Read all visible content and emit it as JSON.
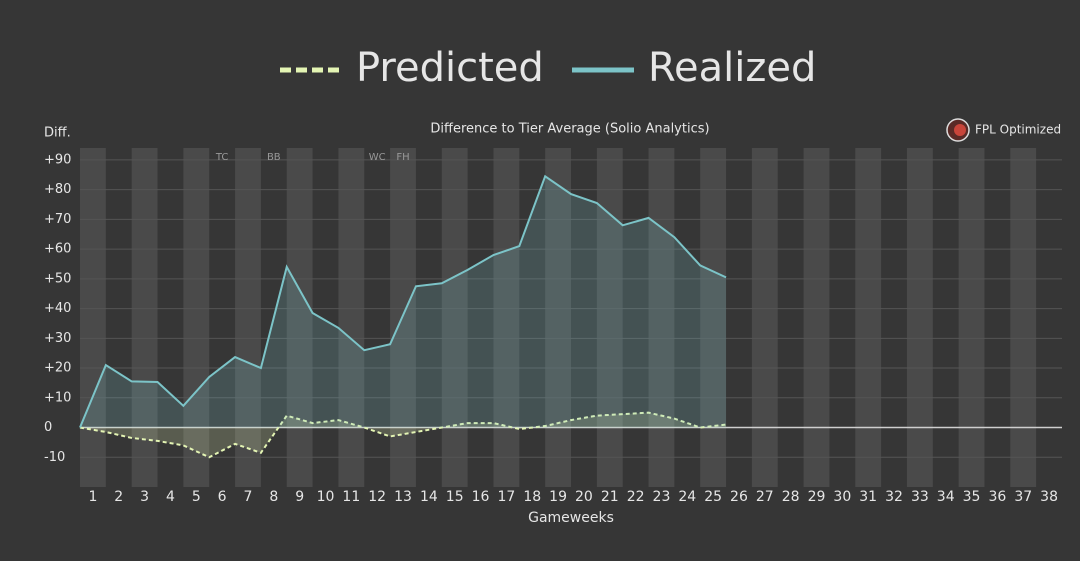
{
  "chart_data": {
    "type": "line",
    "title": "Difference to Tier Average (Solio Analytics)",
    "y_label": "Diff.",
    "x_label": "Gameweeks",
    "brand": "FPL Optimized",
    "x": [
      0.5,
      1.5,
      2.5,
      3.5,
      4.5,
      5.5,
      6.5,
      7.5,
      8.5,
      9.5,
      10.5,
      11.5,
      12.5,
      13.5,
      14.5,
      15.5,
      16.5,
      17.5,
      18.5,
      19.5,
      20.5,
      21.5,
      22.5,
      23.5,
      24.5,
      25.5
    ],
    "series": [
      {
        "name": "Predicted",
        "color": "#e4f5b4",
        "dash": true,
        "values": [
          0,
          -1.5,
          -3.5,
          -4.5,
          -6,
          -10,
          -5.5,
          -8.5,
          4,
          1.5,
          2.5,
          0,
          -3,
          -1.5,
          0,
          1.5,
          1.5,
          -0.5,
          0.5,
          2.5,
          4,
          4.5,
          5,
          3,
          0,
          1
        ]
      },
      {
        "name": "Realized",
        "color": "#7cc4c8",
        "dash": false,
        "values": [
          0,
          21,
          15.5,
          15.3,
          7.3,
          17,
          23.7,
          20,
          54,
          38.5,
          33.5,
          26,
          28,
          47.5,
          48.5,
          53,
          58,
          61,
          84.5,
          78.5,
          75.5,
          68,
          70.5,
          64,
          54.5,
          50.5
        ]
      }
    ],
    "annotations": [
      {
        "x": 6,
        "label": "TC"
      },
      {
        "x": 8,
        "label": "BB"
      },
      {
        "x": 12,
        "label": "WC"
      },
      {
        "x": 13,
        "label": "FH"
      }
    ],
    "xlim": [
      0.5,
      38.5
    ],
    "xticks": [
      1,
      2,
      3,
      4,
      5,
      6,
      7,
      8,
      9,
      10,
      11,
      12,
      13,
      14,
      15,
      16,
      17,
      18,
      19,
      20,
      21,
      22,
      23,
      24,
      25,
      26,
      27,
      28,
      29,
      30,
      31,
      32,
      33,
      34,
      35,
      36,
      37,
      38
    ],
    "ylim": [
      -20,
      94
    ],
    "yticks": [
      {
        "value": 90,
        "label": "+90"
      },
      {
        "value": 80,
        "label": "+80"
      },
      {
        "value": 70,
        "label": "+70"
      },
      {
        "value": 60,
        "label": "+60"
      },
      {
        "value": 50,
        "label": "+50"
      },
      {
        "value": 40,
        "label": "+40"
      },
      {
        "value": 30,
        "label": "+30"
      },
      {
        "value": 20,
        "label": "+20"
      },
      {
        "value": 10,
        "label": "+10"
      },
      0,
      -10
    ],
    "grid": true
  }
}
